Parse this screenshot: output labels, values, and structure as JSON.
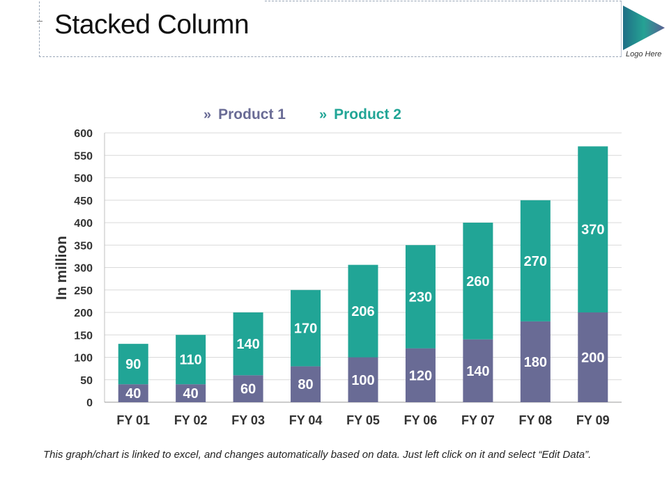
{
  "page": {
    "title": "Stacked Column",
    "logo_text": "Logo Here",
    "footnote": "This graph/chart is linked to excel, and changes automatically based on data. Just left click on it and select “Edit Data”."
  },
  "legend": {
    "marker": "»",
    "items": [
      {
        "label": "Product 1",
        "color": "#696b95"
      },
      {
        "label": "Product 2",
        "color": "#21a596"
      }
    ]
  },
  "chart_data": {
    "type": "bar",
    "stacked": true,
    "title": "",
    "xlabel": "",
    "ylabel": "In million",
    "ylim": [
      0,
      600
    ],
    "yticks": [
      0,
      50,
      100,
      150,
      200,
      250,
      300,
      350,
      400,
      450,
      500,
      550,
      600
    ],
    "categories": [
      "FY 01",
      "FY 02",
      "FY 03",
      "FY 04",
      "FY 05",
      "FY 06",
      "FY 07",
      "FY 08",
      "FY 09"
    ],
    "series": [
      {
        "name": "Product 1",
        "color": "#696b95",
        "values": [
          40,
          40,
          60,
          80,
          100,
          120,
          140,
          180,
          200
        ]
      },
      {
        "name": "Product 2",
        "color": "#21a596",
        "values": [
          90,
          110,
          140,
          170,
          206,
          230,
          260,
          270,
          370
        ]
      }
    ],
    "legend_position": "top",
    "grid": true
  }
}
